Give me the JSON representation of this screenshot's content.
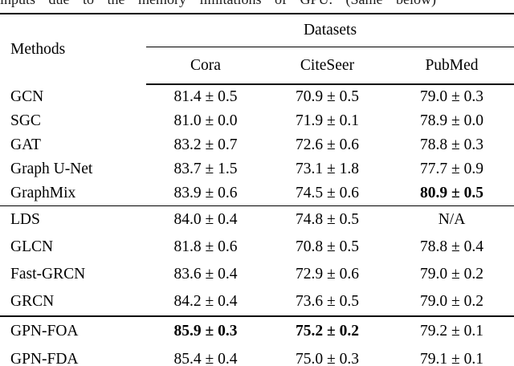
{
  "caption_fragment": "inputs due to the memory limitations of GPU. (Same below)",
  "table": {
    "methods_header": "Methods",
    "datasets_header": "Datasets",
    "columns": [
      "Cora",
      "CiteSeer",
      "PubMed"
    ],
    "groups": [
      {
        "rows": [
          {
            "method": "GCN",
            "cora": "81.4 ± 0.5",
            "citeseer": "70.9 ± 0.5",
            "pubmed": "79.0 ± 0.3"
          },
          {
            "method": "SGC",
            "cora": "81.0 ± 0.0",
            "citeseer": "71.9 ± 0.1",
            "pubmed": "78.9 ± 0.0"
          },
          {
            "method": "GAT",
            "cora": "83.2 ± 0.7",
            "citeseer": "72.6 ± 0.6",
            "pubmed": "78.8 ± 0.3"
          },
          {
            "method": "Graph U-Net",
            "cora": "83.7 ± 1.5",
            "citeseer": "73.1 ± 1.8",
            "pubmed": "77.7 ± 0.9"
          },
          {
            "method": "GraphMix",
            "cora": "83.9 ± 0.6",
            "citeseer": "74.5 ± 0.6",
            "pubmed": "80.9 ± 0.5",
            "pubmed_bold": true
          }
        ]
      },
      {
        "rows": [
          {
            "method": "LDS",
            "cora": "84.0 ± 0.4",
            "citeseer": "74.8 ± 0.5",
            "pubmed": "N/A"
          },
          {
            "method": "GLCN",
            "cora": "81.8 ± 0.6",
            "citeseer": "70.8 ± 0.5",
            "pubmed": "78.8 ± 0.4"
          },
          {
            "method": "Fast-GRCN",
            "cora": "83.6 ± 0.4",
            "citeseer": "72.9 ± 0.6",
            "pubmed": "79.0 ± 0.2"
          },
          {
            "method": "GRCN",
            "cora": "84.2 ± 0.4",
            "citeseer": "73.6 ± 0.5",
            "pubmed": "79.0 ± 0.2"
          }
        ]
      },
      {
        "rows": [
          {
            "method": "GPN-FOA",
            "cora": "85.9 ± 0.3",
            "citeseer": "75.2 ± 0.2",
            "pubmed": "79.2 ± 0.1",
            "cora_bold": true,
            "citeseer_bold": true
          },
          {
            "method": "GPN-FDA",
            "cora": "85.4 ± 0.4",
            "citeseer": "75.0 ± 0.3",
            "pubmed": "79.1 ± 0.1"
          }
        ]
      }
    ]
  }
}
